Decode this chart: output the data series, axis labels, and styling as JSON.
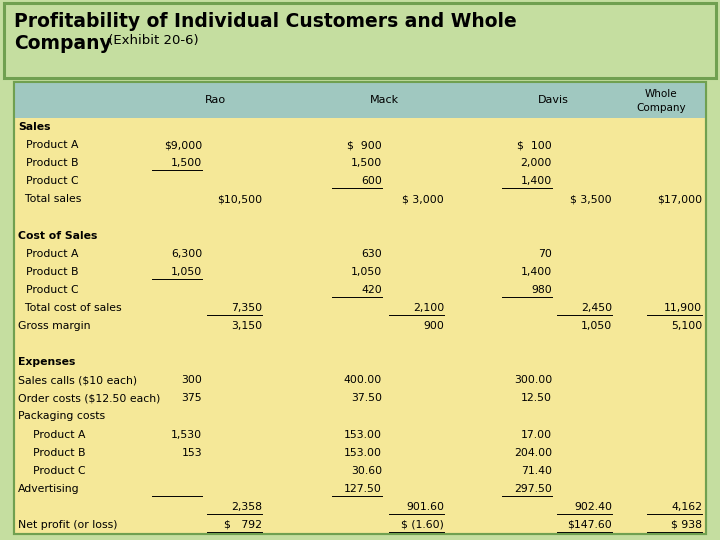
{
  "title_line1": "Profitability of Individual Customers and Whole",
  "title_line2": "Company",
  "title_subtitle": " (Exhibit 20-6)",
  "title_bg": "#c5dea0",
  "header_bg": "#a0c8c0",
  "body_bg": "#f5e898",
  "border_color": "#70a050",
  "rows": [
    {
      "label": "Sales",
      "indent": 0,
      "bold": true,
      "rao1": "",
      "rao2": "",
      "mack1": "",
      "mack2": "",
      "davis1": "",
      "davis2": "",
      "whole": "",
      "type": "section"
    },
    {
      "label": "Product A",
      "indent": 1,
      "bold": false,
      "rao1": "$9,000",
      "rao2": "",
      "mack1": "$  900",
      "mack2": "",
      "davis1": "$  100",
      "davis2": "",
      "whole": "",
      "type": "data"
    },
    {
      "label": "Product B",
      "indent": 1,
      "bold": false,
      "rao1": "1,500",
      "rao2": "",
      "mack1": "1,500",
      "mack2": "",
      "davis1": "2,000",
      "davis2": "",
      "whole": "",
      "type": "data",
      "ul_rao1": true
    },
    {
      "label": "Product C",
      "indent": 1,
      "bold": false,
      "rao1": "",
      "rao2": "",
      "mack1": "600",
      "mack2": "",
      "davis1": "1,400",
      "davis2": "",
      "whole": "",
      "type": "data",
      "ul_mack1": true,
      "ul_davis1": true
    },
    {
      "label": "  Total sales",
      "indent": 0,
      "bold": false,
      "rao1": "",
      "rao2": "$10,500",
      "mack1": "",
      "mack2": "$ 3,000",
      "davis1": "",
      "davis2": "$ 3,500",
      "whole": "$17,000",
      "type": "total"
    },
    {
      "label": "",
      "indent": 0,
      "bold": false,
      "rao1": "",
      "rao2": "",
      "mack1": "",
      "mack2": "",
      "davis1": "",
      "davis2": "",
      "whole": "",
      "type": "blank"
    },
    {
      "label": "Cost of Sales",
      "indent": 0,
      "bold": true,
      "rao1": "",
      "rao2": "",
      "mack1": "",
      "mack2": "",
      "davis1": "",
      "davis2": "",
      "whole": "",
      "type": "section"
    },
    {
      "label": "Product A",
      "indent": 1,
      "bold": false,
      "rao1": "6,300",
      "rao2": "",
      "mack1": "630",
      "mack2": "",
      "davis1": "70",
      "davis2": "",
      "whole": "",
      "type": "data"
    },
    {
      "label": "Product B",
      "indent": 1,
      "bold": false,
      "rao1": "1,050",
      "rao2": "",
      "mack1": "1,050",
      "mack2": "",
      "davis1": "1,400",
      "davis2": "",
      "whole": "",
      "type": "data",
      "ul_rao1": true
    },
    {
      "label": "Product C",
      "indent": 1,
      "bold": false,
      "rao1": "",
      "rao2": "",
      "mack1": "420",
      "mack2": "",
      "davis1": "980",
      "davis2": "",
      "whole": "",
      "type": "data",
      "ul_mack1": true,
      "ul_davis1": true
    },
    {
      "label": "  Total cost of sales",
      "indent": 0,
      "bold": false,
      "rao1": "",
      "rao2": "7,350",
      "mack1": "",
      "mack2": "2,100",
      "davis1": "",
      "davis2": "2,450",
      "whole": "11,900",
      "type": "total",
      "ul_rao2": true,
      "ul_mack2": true,
      "ul_davis2": true,
      "ul_whole": true
    },
    {
      "label": "Gross margin",
      "indent": 0,
      "bold": false,
      "rao1": "",
      "rao2": "3,150",
      "mack1": "",
      "mack2": "900",
      "davis1": "",
      "davis2": "1,050",
      "whole": "5,100",
      "type": "data"
    },
    {
      "label": "",
      "indent": 0,
      "bold": false,
      "rao1": "",
      "rao2": "",
      "mack1": "",
      "mack2": "",
      "davis1": "",
      "davis2": "",
      "whole": "",
      "type": "blank"
    },
    {
      "label": "Expenses",
      "indent": 0,
      "bold": true,
      "rao1": "",
      "rao2": "",
      "mack1": "",
      "mack2": "",
      "davis1": "",
      "davis2": "",
      "whole": "",
      "type": "section"
    },
    {
      "label": "Sales calls ($10 each)",
      "indent": 0,
      "bold": false,
      "rao1": "300",
      "rao2": "",
      "mack1": "400.00",
      "mack2": "",
      "davis1": "300.00",
      "davis2": "",
      "whole": "",
      "type": "data"
    },
    {
      "label": "Order costs ($12.50 each)",
      "indent": 0,
      "bold": false,
      "rao1": "375",
      "rao2": "",
      "mack1": "37.50",
      "mack2": "",
      "davis1": "12.50",
      "davis2": "",
      "whole": "",
      "type": "data"
    },
    {
      "label": "Packaging costs",
      "indent": 0,
      "bold": false,
      "rao1": "",
      "rao2": "",
      "mack1": "",
      "mack2": "",
      "davis1": "",
      "davis2": "",
      "whole": "",
      "type": "section_plain"
    },
    {
      "label": "  Product A",
      "indent": 1,
      "bold": false,
      "rao1": "1,530",
      "rao2": "",
      "mack1": "153.00",
      "mack2": "",
      "davis1": "17.00",
      "davis2": "",
      "whole": "",
      "type": "data"
    },
    {
      "label": "  Product B",
      "indent": 1,
      "bold": false,
      "rao1": "153",
      "rao2": "",
      "mack1": "153.00",
      "mack2": "",
      "davis1": "204.00",
      "davis2": "",
      "whole": "",
      "type": "data"
    },
    {
      "label": "  Product C",
      "indent": 1,
      "bold": false,
      "rao1": "",
      "rao2": "",
      "mack1": "30.60",
      "mack2": "",
      "davis1": "71.40",
      "davis2": "",
      "whole": "",
      "type": "data"
    },
    {
      "label": "Advertising",
      "indent": 0,
      "bold": false,
      "rao1": "",
      "rao2": "",
      "mack1": "127.50",
      "mack2": "",
      "davis1": "297.50",
      "davis2": "",
      "whole": "",
      "type": "data",
      "ul_rao1": true,
      "ul_mack1": true,
      "ul_davis1": true
    },
    {
      "label": "",
      "indent": 0,
      "bold": false,
      "rao1": "",
      "rao2": "2,358",
      "mack1": "",
      "mack2": "901.60",
      "davis1": "",
      "davis2": "902.40",
      "whole": "4,162",
      "type": "subtotal",
      "ul_rao2": true,
      "ul_mack2": true,
      "ul_davis2": true,
      "ul_whole": true
    },
    {
      "label": "Net profit (or loss)",
      "indent": 0,
      "bold": false,
      "rao1": "",
      "rao2": "$   792",
      "mack1": "",
      "mack2": "$ (1.60)",
      "davis1": "",
      "davis2": "$147.60",
      "whole": "$ 938",
      "type": "final",
      "dbl_rao2": true,
      "dbl_mack2": true,
      "dbl_davis2": true,
      "dbl_whole": true
    }
  ]
}
